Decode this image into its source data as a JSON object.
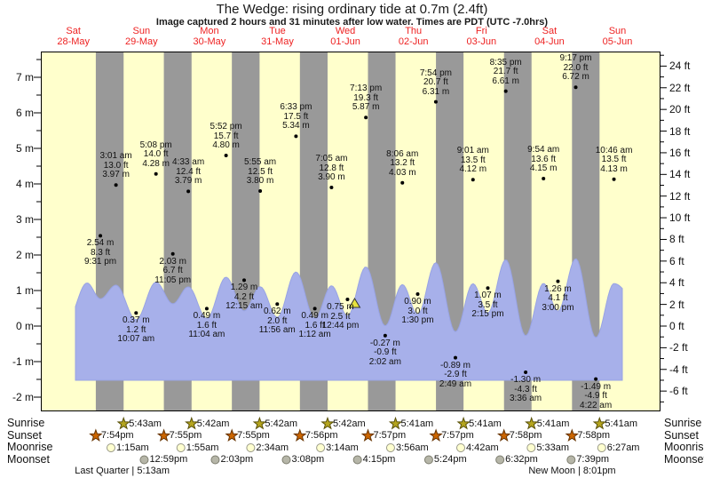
{
  "title": "The Wedge: rising ordinary tide at 0.7m (2.4ft)",
  "subtitle": "Image captured 2 hours and 31 minutes after low water. Times are PDT (UTC -7.0hrs)",
  "colors": {
    "day_bg": "#ffffcc",
    "night_bg": "#999999",
    "tide_fill": "#a7b0ea",
    "tide_edge": "#98a3e4",
    "date_text": "#ee2222",
    "sunrise_star": "#b5a51e",
    "sunrise_star_edge": "#59510a",
    "sunset_star": "#cc6600",
    "sunset_star_edge": "#663300",
    "moonrise_fill": "#ffffd0",
    "moonrise_edge": "#999988",
    "moonset_fill": "#b6b6a8",
    "moonset_edge": "#7d7d6f",
    "marker_triangle": "#e6e33e"
  },
  "chart_data": {
    "type": "area",
    "title": "The Wedge: rising ordinary tide at 0.7m (2.4ft)",
    "days": [
      {
        "weekday": "Sat",
        "date": "28-May"
      },
      {
        "weekday": "Sun",
        "date": "29-May"
      },
      {
        "weekday": "Mon",
        "date": "30-May"
      },
      {
        "weekday": "Tue",
        "date": "31-May"
      },
      {
        "weekday": "Wed",
        "date": "01-Jun"
      },
      {
        "weekday": "Thu",
        "date": "02-Jun"
      },
      {
        "weekday": "Fri",
        "date": "03-Jun"
      },
      {
        "weekday": "Sat",
        "date": "04-Jun"
      },
      {
        "weekday": "Sun",
        "date": "05-Jun"
      }
    ],
    "y_axis_left": {
      "unit": "m",
      "min": -2,
      "max": 7,
      "label_step": 1,
      "minor_step": 0.5
    },
    "y_axis_right": {
      "unit": "ft",
      "min": -6,
      "max": 24,
      "label_step": 2,
      "minor_step": 1
    },
    "extremes": [
      {
        "day": 0,
        "time": "9:31 pm",
        "height_m": 2.54,
        "height_ft": 8.3,
        "type": "low"
      },
      {
        "day": 1,
        "time": "3:01 am",
        "height_m": 3.97,
        "height_ft": 13.0,
        "type": "high"
      },
      {
        "day": 1,
        "time": "10:07 am",
        "height_m": 0.37,
        "height_ft": 1.2,
        "type": "low"
      },
      {
        "day": 1,
        "time": "5:08 pm",
        "height_m": 4.28,
        "height_ft": 14.0,
        "type": "high"
      },
      {
        "day": 1,
        "time": "11:05 pm",
        "height_m": 2.03,
        "height_ft": 6.7,
        "type": "low"
      },
      {
        "day": 2,
        "time": "4:33 am",
        "height_m": 3.79,
        "height_ft": 12.4,
        "type": "high"
      },
      {
        "day": 2,
        "time": "11:04 am",
        "height_m": 0.49,
        "height_ft": 1.6,
        "type": "low"
      },
      {
        "day": 2,
        "time": "5:52 pm",
        "height_m": 4.8,
        "height_ft": 15.7,
        "type": "high"
      },
      {
        "day": 3,
        "time": "12:15 am",
        "height_m": 1.29,
        "height_ft": 4.2,
        "type": "low"
      },
      {
        "day": 3,
        "time": "5:55 am",
        "height_m": 3.8,
        "height_ft": 12.5,
        "type": "high"
      },
      {
        "day": 3,
        "time": "11:56 am",
        "height_m": 0.62,
        "height_ft": 2.0,
        "type": "low"
      },
      {
        "day": 3,
        "time": "6:33 pm",
        "height_m": 5.34,
        "height_ft": 17.5,
        "type": "high"
      },
      {
        "day": 4,
        "time": "1:12 am",
        "height_m": 0.49,
        "height_ft": 1.6,
        "type": "low"
      },
      {
        "day": 4,
        "time": "7:05 am",
        "height_m": 3.9,
        "height_ft": 12.8,
        "type": "high"
      },
      {
        "day": 4,
        "time": "12:44 pm",
        "height_m": 0.75,
        "height_ft": 2.5,
        "type": "low"
      },
      {
        "day": 4,
        "time": "7:13 pm",
        "height_m": 5.87,
        "height_ft": 19.3,
        "type": "high"
      },
      {
        "day": 5,
        "time": "2:02 am",
        "height_m": -0.27,
        "height_ft": -0.9,
        "type": "low"
      },
      {
        "day": 5,
        "time": "8:06 am",
        "height_m": 4.03,
        "height_ft": 13.2,
        "type": "high"
      },
      {
        "day": 5,
        "time": "1:30 pm",
        "height_m": 0.9,
        "height_ft": 3.0,
        "type": "low"
      },
      {
        "day": 5,
        "time": "7:54 pm",
        "height_m": 6.31,
        "height_ft": 20.7,
        "type": "high"
      },
      {
        "day": 6,
        "time": "2:49 am",
        "height_m": -0.89,
        "height_ft": -2.9,
        "type": "low"
      },
      {
        "day": 6,
        "time": "9:01 am",
        "height_m": 4.12,
        "height_ft": 13.5,
        "type": "high"
      },
      {
        "day": 6,
        "time": "2:15 pm",
        "height_m": 1.07,
        "height_ft": 3.5,
        "type": "low"
      },
      {
        "day": 6,
        "time": "8:35 pm",
        "height_m": 6.61,
        "height_ft": 21.7,
        "type": "high"
      },
      {
        "day": 7,
        "time": "3:36 am",
        "height_m": -1.3,
        "height_ft": -4.3,
        "type": "low"
      },
      {
        "day": 7,
        "time": "9:54 am",
        "height_m": 4.15,
        "height_ft": 13.6,
        "type": "high"
      },
      {
        "day": 7,
        "time": "3:00 pm",
        "height_m": 1.26,
        "height_ft": 4.1,
        "type": "low"
      },
      {
        "day": 7,
        "time": "9:17 pm",
        "height_m": 6.72,
        "height_ft": 22.0,
        "type": "high"
      },
      {
        "day": 8,
        "time": "4:22 am",
        "height_m": -1.49,
        "height_ft": -4.9,
        "type": "low"
      },
      {
        "day": 8,
        "time": "10:46 am",
        "height_m": 4.13,
        "height_ft": 13.5,
        "type": "high"
      }
    ],
    "current_time_marker": {
      "day": 4,
      "time": "3:15 pm"
    }
  },
  "sun_moon": {
    "row_labels": [
      "Sunrise",
      "Sunset",
      "Moonrise",
      "Moonset"
    ],
    "sunrise": [
      {
        "day": 1,
        "time": "5:43am"
      },
      {
        "day": 2,
        "time": "5:42am"
      },
      {
        "day": 3,
        "time": "5:42am"
      },
      {
        "day": 4,
        "time": "5:42am"
      },
      {
        "day": 5,
        "time": "5:41am"
      },
      {
        "day": 6,
        "time": "5:41am"
      },
      {
        "day": 7,
        "time": "5:41am"
      },
      {
        "day": 8,
        "time": "5:41am"
      }
    ],
    "sunset": [
      {
        "day": 0,
        "time": "7:54pm"
      },
      {
        "day": 1,
        "time": "7:55pm"
      },
      {
        "day": 2,
        "time": "7:55pm"
      },
      {
        "day": 3,
        "time": "7:56pm"
      },
      {
        "day": 4,
        "time": "7:57pm"
      },
      {
        "day": 5,
        "time": "7:57pm"
      },
      {
        "day": 6,
        "time": "7:58pm"
      },
      {
        "day": 7,
        "time": "7:58pm"
      }
    ],
    "moonrise": [
      {
        "day": 1,
        "time": "1:15am"
      },
      {
        "day": 2,
        "time": "1:55am"
      },
      {
        "day": 3,
        "time": "2:34am"
      },
      {
        "day": 4,
        "time": "3:14am"
      },
      {
        "day": 5,
        "time": "3:56am"
      },
      {
        "day": 6,
        "time": "4:42am"
      },
      {
        "day": 7,
        "time": "5:33am"
      },
      {
        "day": 8,
        "time": "6:27am"
      }
    ],
    "moonset": [
      {
        "day": 1,
        "time": "12:59pm"
      },
      {
        "day": 2,
        "time": "2:03pm"
      },
      {
        "day": 3,
        "time": "3:08pm"
      },
      {
        "day": 4,
        "time": "4:15pm"
      },
      {
        "day": 5,
        "time": "5:24pm"
      },
      {
        "day": 6,
        "time": "6:32pm"
      },
      {
        "day": 7,
        "time": "7:39pm"
      }
    ],
    "phases": [
      {
        "label": "Last Quarter",
        "time": "5:13am",
        "day": 1
      },
      {
        "label": "New Moon",
        "time": "8:01pm",
        "day": 7
      }
    ]
  }
}
